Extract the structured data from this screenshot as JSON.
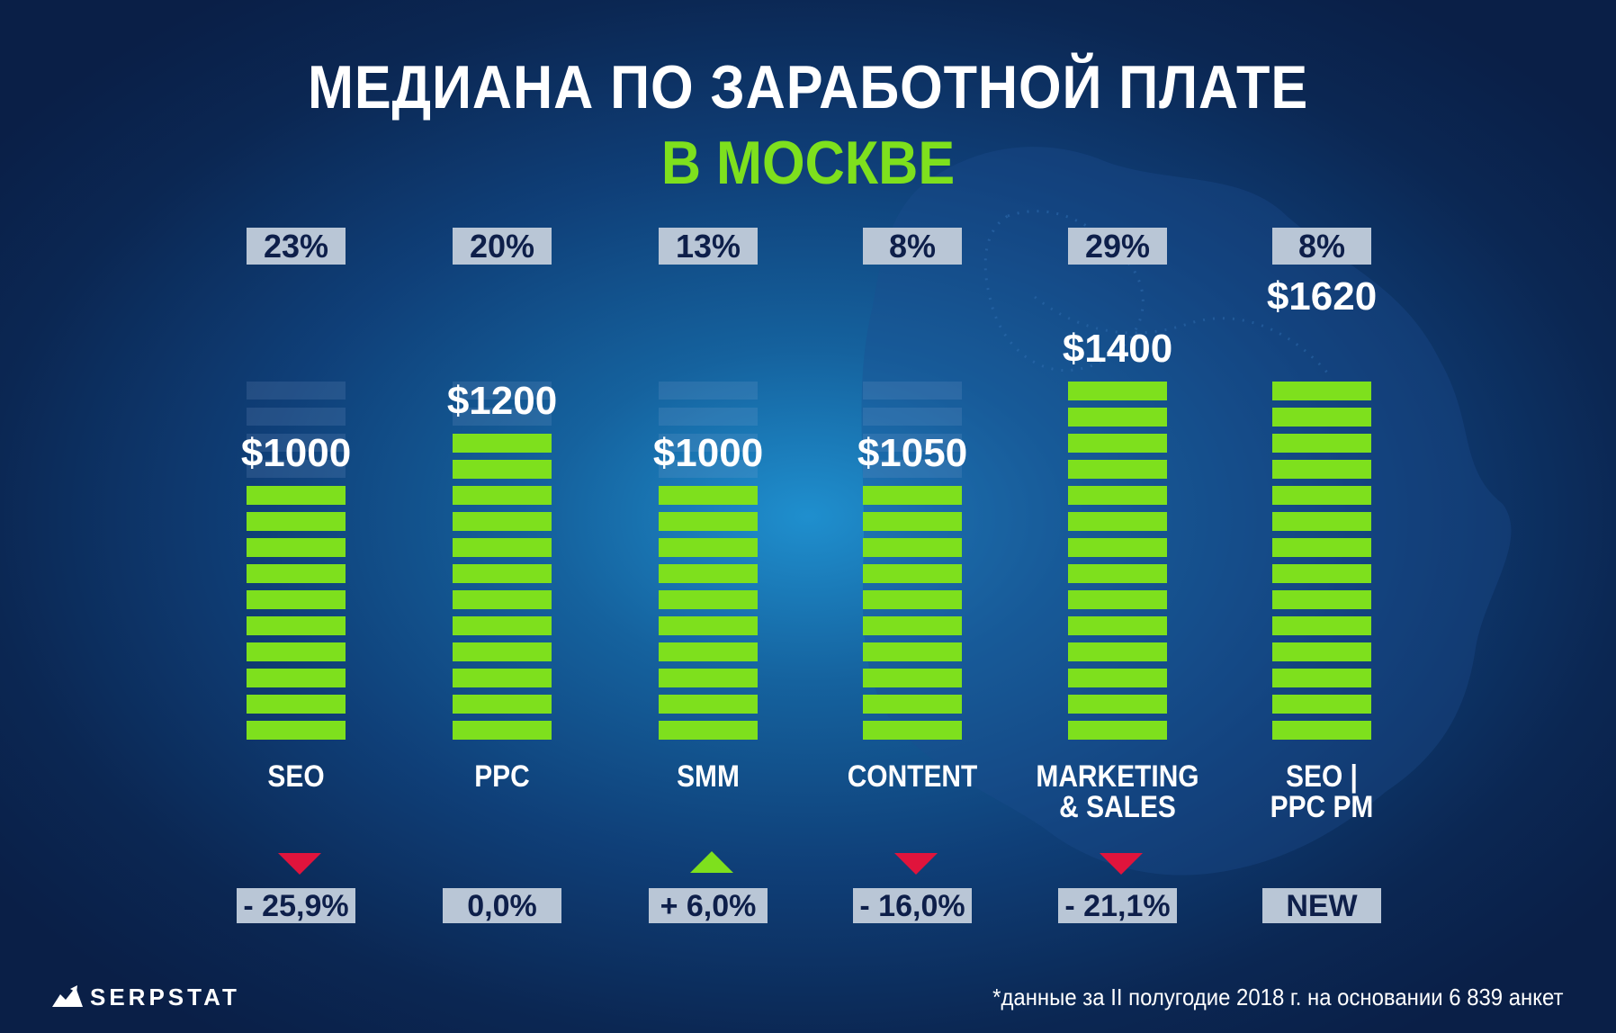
{
  "title": {
    "line1": "МЕДИАНА ПО ЗАРАБОТНОЙ ПЛАТЕ",
    "line2": "В МОСКВЕ"
  },
  "colors": {
    "bar": "#7ee01d",
    "down": "#e0143c",
    "up": "#7ee01d",
    "accent": "#7ee01d",
    "badge": "#b9c6d6"
  },
  "chart_data": {
    "type": "bar",
    "unit": "$",
    "categories": [
      "SEO",
      "PPC",
      "SMM",
      "CONTENT",
      "MARKETING & SALES",
      "SEO | PPC PM"
    ],
    "label_lines": [
      [
        "SEO"
      ],
      [
        "PPC"
      ],
      [
        "SMM"
      ],
      [
        "CONTENT"
      ],
      [
        "MARKETING",
        "& SALES"
      ],
      [
        "SEO |",
        "PPC PM"
      ]
    ],
    "values": [
      1000,
      1200,
      1000,
      1050,
      1400,
      1620
    ],
    "value_labels": [
      "$1000",
      "$1200",
      "$1000",
      "$1050",
      "$1400",
      "$1620"
    ],
    "shares": [
      "23%",
      "20%",
      "13%",
      "8%",
      "29%",
      "8%"
    ],
    "changes": [
      "- 25,9%",
      "0,0%",
      "+ 6,0%",
      "- 16,0%",
      "- 21,1%",
      "NEW"
    ],
    "trend": [
      "down",
      "none",
      "up",
      "down",
      "down",
      "none"
    ],
    "grid": false
  },
  "footer": {
    "logo": "SERPSTAT",
    "note": "*данные за II полугодие 2018 г. на основании 6 839 анкет"
  }
}
